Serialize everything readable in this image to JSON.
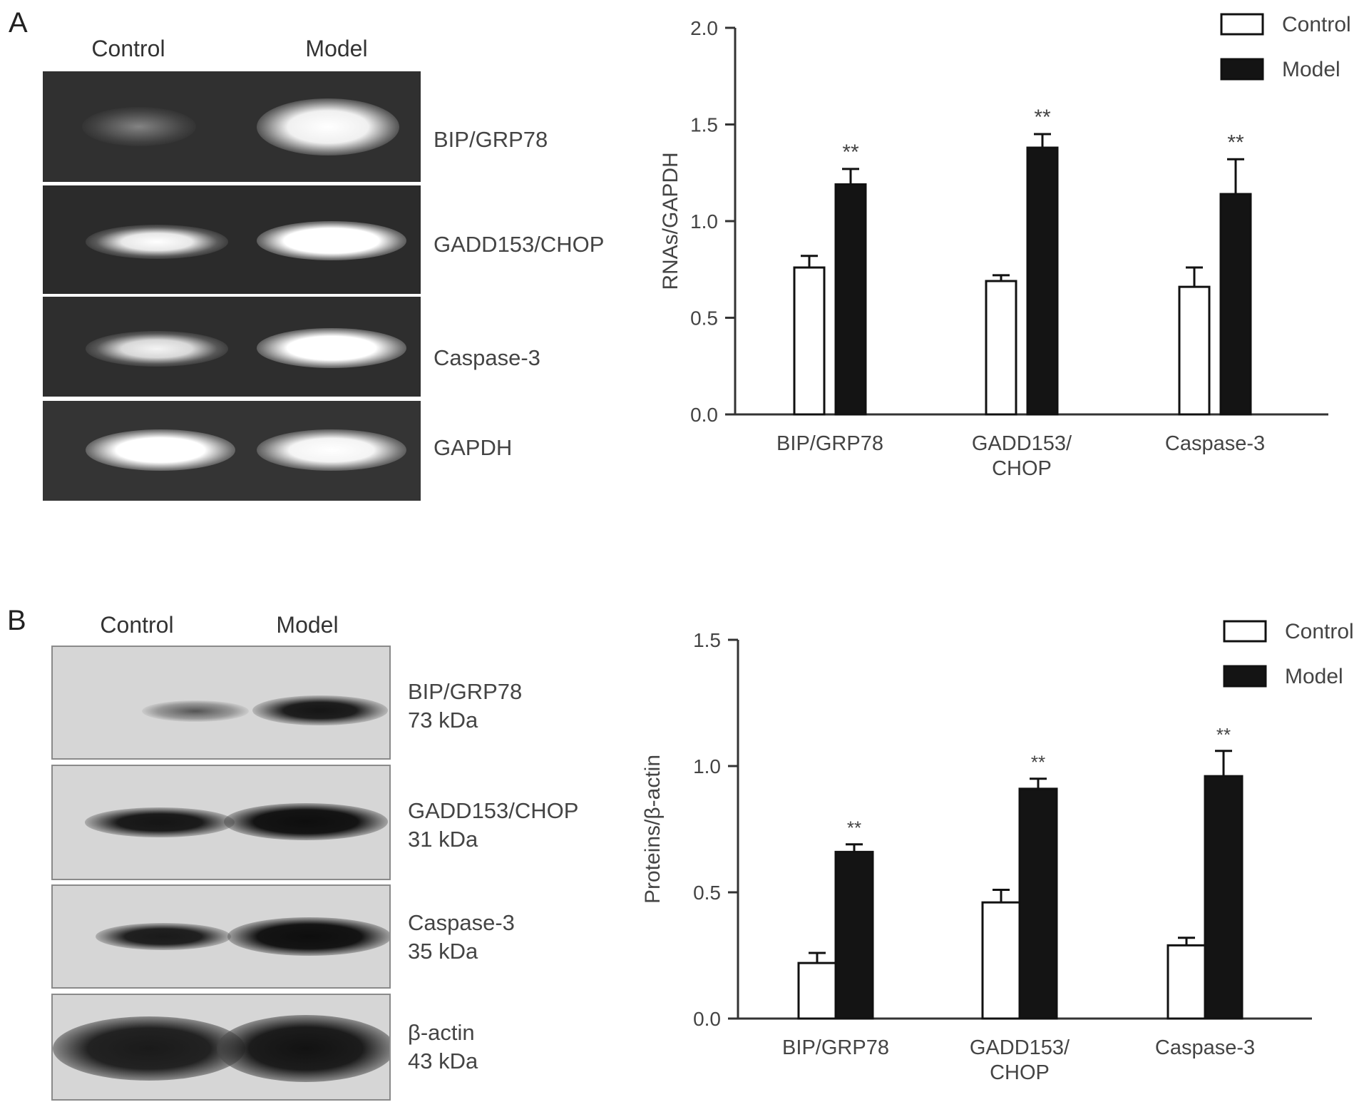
{
  "panel_a": {
    "letter": "A",
    "lanes": [
      "Control",
      "Model"
    ],
    "rows": [
      "BIP/GRP78",
      "GADD153/CHOP",
      "Caspase-3",
      "GAPDH"
    ]
  },
  "panel_b": {
    "letter": "B",
    "lanes": [
      "Control",
      "Model"
    ],
    "rows": [
      {
        "name": "BIP/GRP78",
        "size": "73 kDa"
      },
      {
        "name": "GADD153/CHOP",
        "size": "31 kDa"
      },
      {
        "name": "Caspase-3",
        "size": "35 kDa"
      },
      {
        "name": "β-actin",
        "size": "43 kDa"
      }
    ]
  },
  "colors": {
    "control": "#ffffff",
    "model": "#141414",
    "axis": "#333333"
  },
  "chart_data": [
    {
      "type": "bar",
      "categories": [
        [
          "BIP/GRP78"
        ],
        [
          "GADD153/",
          "CHOP"
        ],
        [
          "Caspase-3"
        ]
      ],
      "series": [
        {
          "name": "Control",
          "values": [
            0.76,
            0.69,
            0.66
          ],
          "errors": [
            0.06,
            0.03,
            0.1
          ]
        },
        {
          "name": "Model",
          "values": [
            1.19,
            1.38,
            1.14
          ],
          "errors": [
            0.08,
            0.07,
            0.18
          ]
        }
      ],
      "annotations": [
        "",
        "**",
        "**",
        "**"
      ],
      "xlabel": "",
      "ylabel": "RNAs/GAPDH",
      "ylim": [
        0,
        2.0
      ],
      "yticks": [
        "0.0",
        "0.5",
        "1.0",
        "1.5",
        "2.0"
      ],
      "legend": "top-right",
      "grid": false
    },
    {
      "type": "bar",
      "categories": [
        [
          "BIP/GRP78"
        ],
        [
          "GADD153/",
          "CHOP"
        ],
        [
          "Caspase-3"
        ]
      ],
      "series": [
        {
          "name": "Control",
          "values": [
            0.22,
            0.46,
            0.29
          ],
          "errors": [
            0.04,
            0.05,
            0.03
          ]
        },
        {
          "name": "Model",
          "values": [
            0.66,
            0.91,
            0.96
          ],
          "errors": [
            0.03,
            0.04,
            0.1
          ]
        }
      ],
      "annotations": [
        "**",
        "**",
        "**"
      ],
      "xlabel": "",
      "ylabel": "Proteins/β-actin",
      "ylim": [
        0,
        1.5
      ],
      "yticks": [
        "0.0",
        "0.5",
        "1.0",
        "1.5"
      ],
      "legend": "top-right",
      "grid": false
    }
  ]
}
